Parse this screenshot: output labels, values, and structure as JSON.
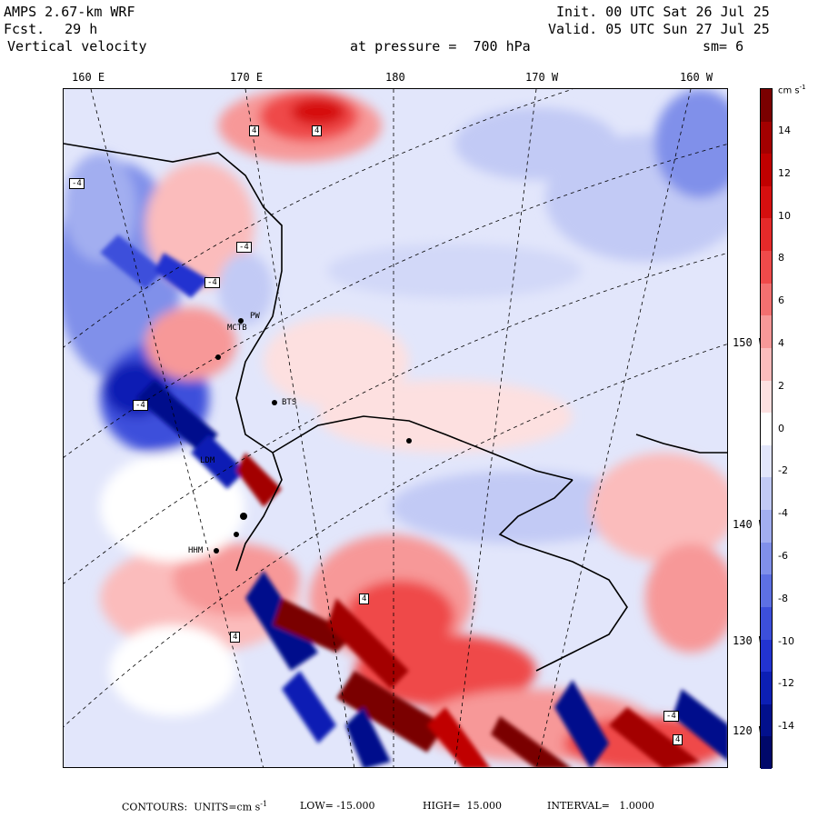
{
  "header": {
    "model": "AMPS 2.67-km WRF",
    "fcst_label": "Fcst.",
    "fcst_value": "29 h",
    "variable": "Vertical velocity",
    "init": "Init. 00 UTC Sat 26 Jul 25",
    "valid": "Valid. 05 UTC Sun 27 Jul 25",
    "level": "at pressure =  700 hPa",
    "smooth": "sm= 6"
  },
  "top_axis_labels": [
    "160 E",
    "170 E",
    "180",
    "170 W",
    "160 W"
  ],
  "right_axis_labels": [
    "150 W",
    "140 W",
    "130 W",
    "120 W"
  ],
  "colorbar": {
    "unit": "cm s",
    "unit_exp": "-1",
    "ticks": [
      "14",
      "12",
      "10",
      "8",
      "6",
      "4",
      "2",
      "0",
      "-2",
      "-4",
      "-6",
      "-8",
      "-10",
      "-12",
      "-14"
    ],
    "colors": [
      "#7a0000",
      "#a30000",
      "#c00000",
      "#d60f0f",
      "#e52a2a",
      "#ef4a4a",
      "#f37070",
      "#f79898",
      "#fbbcbc",
      "#fde0e0",
      "#ffffff",
      "#e2e6fb",
      "#c2caf5",
      "#a2aef0",
      "#8090ea",
      "#5d70e3",
      "#3c4fdb",
      "#2233d0",
      "#0c1fb4",
      "#02108c",
      "#00086a"
    ]
  },
  "stations": [
    "PW",
    "MCTB",
    "BTS",
    "LDM",
    "HHM"
  ],
  "box_labels": [
    "4",
    "4",
    "-4",
    "-4",
    "-4",
    "-4",
    "-4",
    "4",
    "4",
    "4"
  ],
  "footer": {
    "contours": "CONTOURS:  UNITS=cm s",
    "contours_exp": "-1",
    "low": "LOW= -15.000",
    "high": "HIGH=  15.000",
    "interval": "INTERVAL=   1.0000"
  }
}
